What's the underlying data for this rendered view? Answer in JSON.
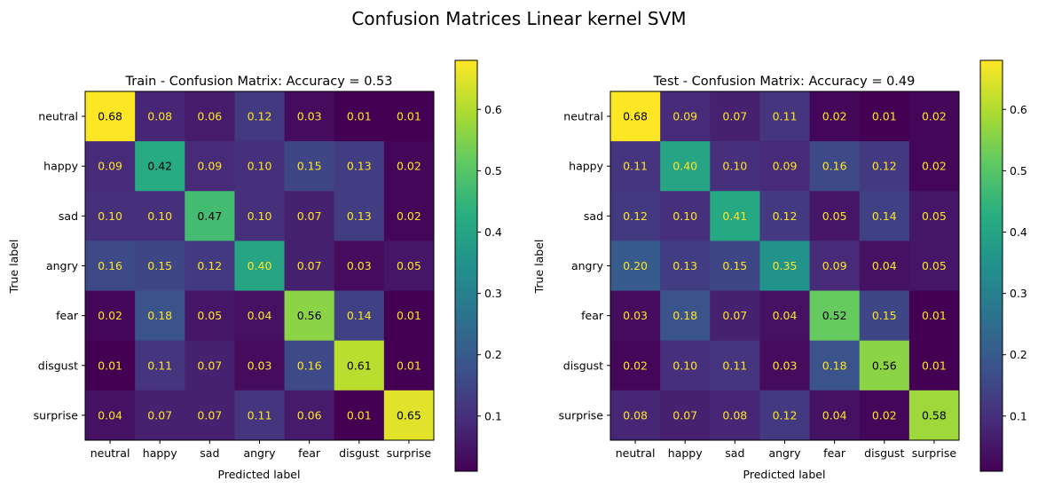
{
  "suptitle": "Confusion Matrices Linear kernel SVM",
  "chart_data": [
    {
      "type": "heatmap",
      "title": "Train - Confusion Matrix: Accuracy = 0.53",
      "xlabel": "Predicted label",
      "ylabel": "True label",
      "labels": [
        "neutral",
        "happy",
        "sad",
        "angry",
        "fear",
        "disgust",
        "surprise"
      ],
      "matrix": [
        [
          0.68,
          0.08,
          0.06,
          0.12,
          0.03,
          0.01,
          0.01
        ],
        [
          0.09,
          0.42,
          0.09,
          0.1,
          0.15,
          0.13,
          0.02
        ],
        [
          0.1,
          0.1,
          0.47,
          0.1,
          0.07,
          0.13,
          0.02
        ],
        [
          0.16,
          0.15,
          0.12,
          0.4,
          0.07,
          0.03,
          0.05
        ],
        [
          0.02,
          0.18,
          0.05,
          0.04,
          0.56,
          0.14,
          0.01
        ],
        [
          0.01,
          0.11,
          0.07,
          0.03,
          0.16,
          0.61,
          0.01
        ],
        [
          0.04,
          0.07,
          0.07,
          0.11,
          0.06,
          0.01,
          0.65
        ]
      ],
      "colorbar": {
        "min": 0.01,
        "max": 0.68,
        "ticks": [
          "0.1",
          "0.2",
          "0.3",
          "0.4",
          "0.5",
          "0.6"
        ],
        "colormap": "viridis"
      }
    },
    {
      "type": "heatmap",
      "title": "Test - Confusion Matrix: Accuracy = 0.49",
      "xlabel": "Predicted label",
      "ylabel": "True label",
      "labels": [
        "neutral",
        "happy",
        "sad",
        "angry",
        "fear",
        "disgust",
        "surprise"
      ],
      "matrix": [
        [
          0.68,
          0.09,
          0.07,
          0.11,
          0.02,
          0.01,
          0.02
        ],
        [
          0.11,
          0.4,
          0.1,
          0.09,
          0.16,
          0.12,
          0.02
        ],
        [
          0.12,
          0.1,
          0.41,
          0.12,
          0.05,
          0.14,
          0.05
        ],
        [
          0.2,
          0.13,
          0.15,
          0.35,
          0.09,
          0.04,
          0.05
        ],
        [
          0.03,
          0.18,
          0.07,
          0.04,
          0.52,
          0.15,
          0.01
        ],
        [
          0.02,
          0.1,
          0.11,
          0.03,
          0.18,
          0.56,
          0.01
        ],
        [
          0.08,
          0.07,
          0.08,
          0.12,
          0.04,
          0.02,
          0.58
        ]
      ],
      "colorbar": {
        "min": 0.01,
        "max": 0.68,
        "ticks": [
          "0.1",
          "0.2",
          "0.3",
          "0.4",
          "0.5",
          "0.6"
        ],
        "colormap": "viridis"
      }
    }
  ]
}
